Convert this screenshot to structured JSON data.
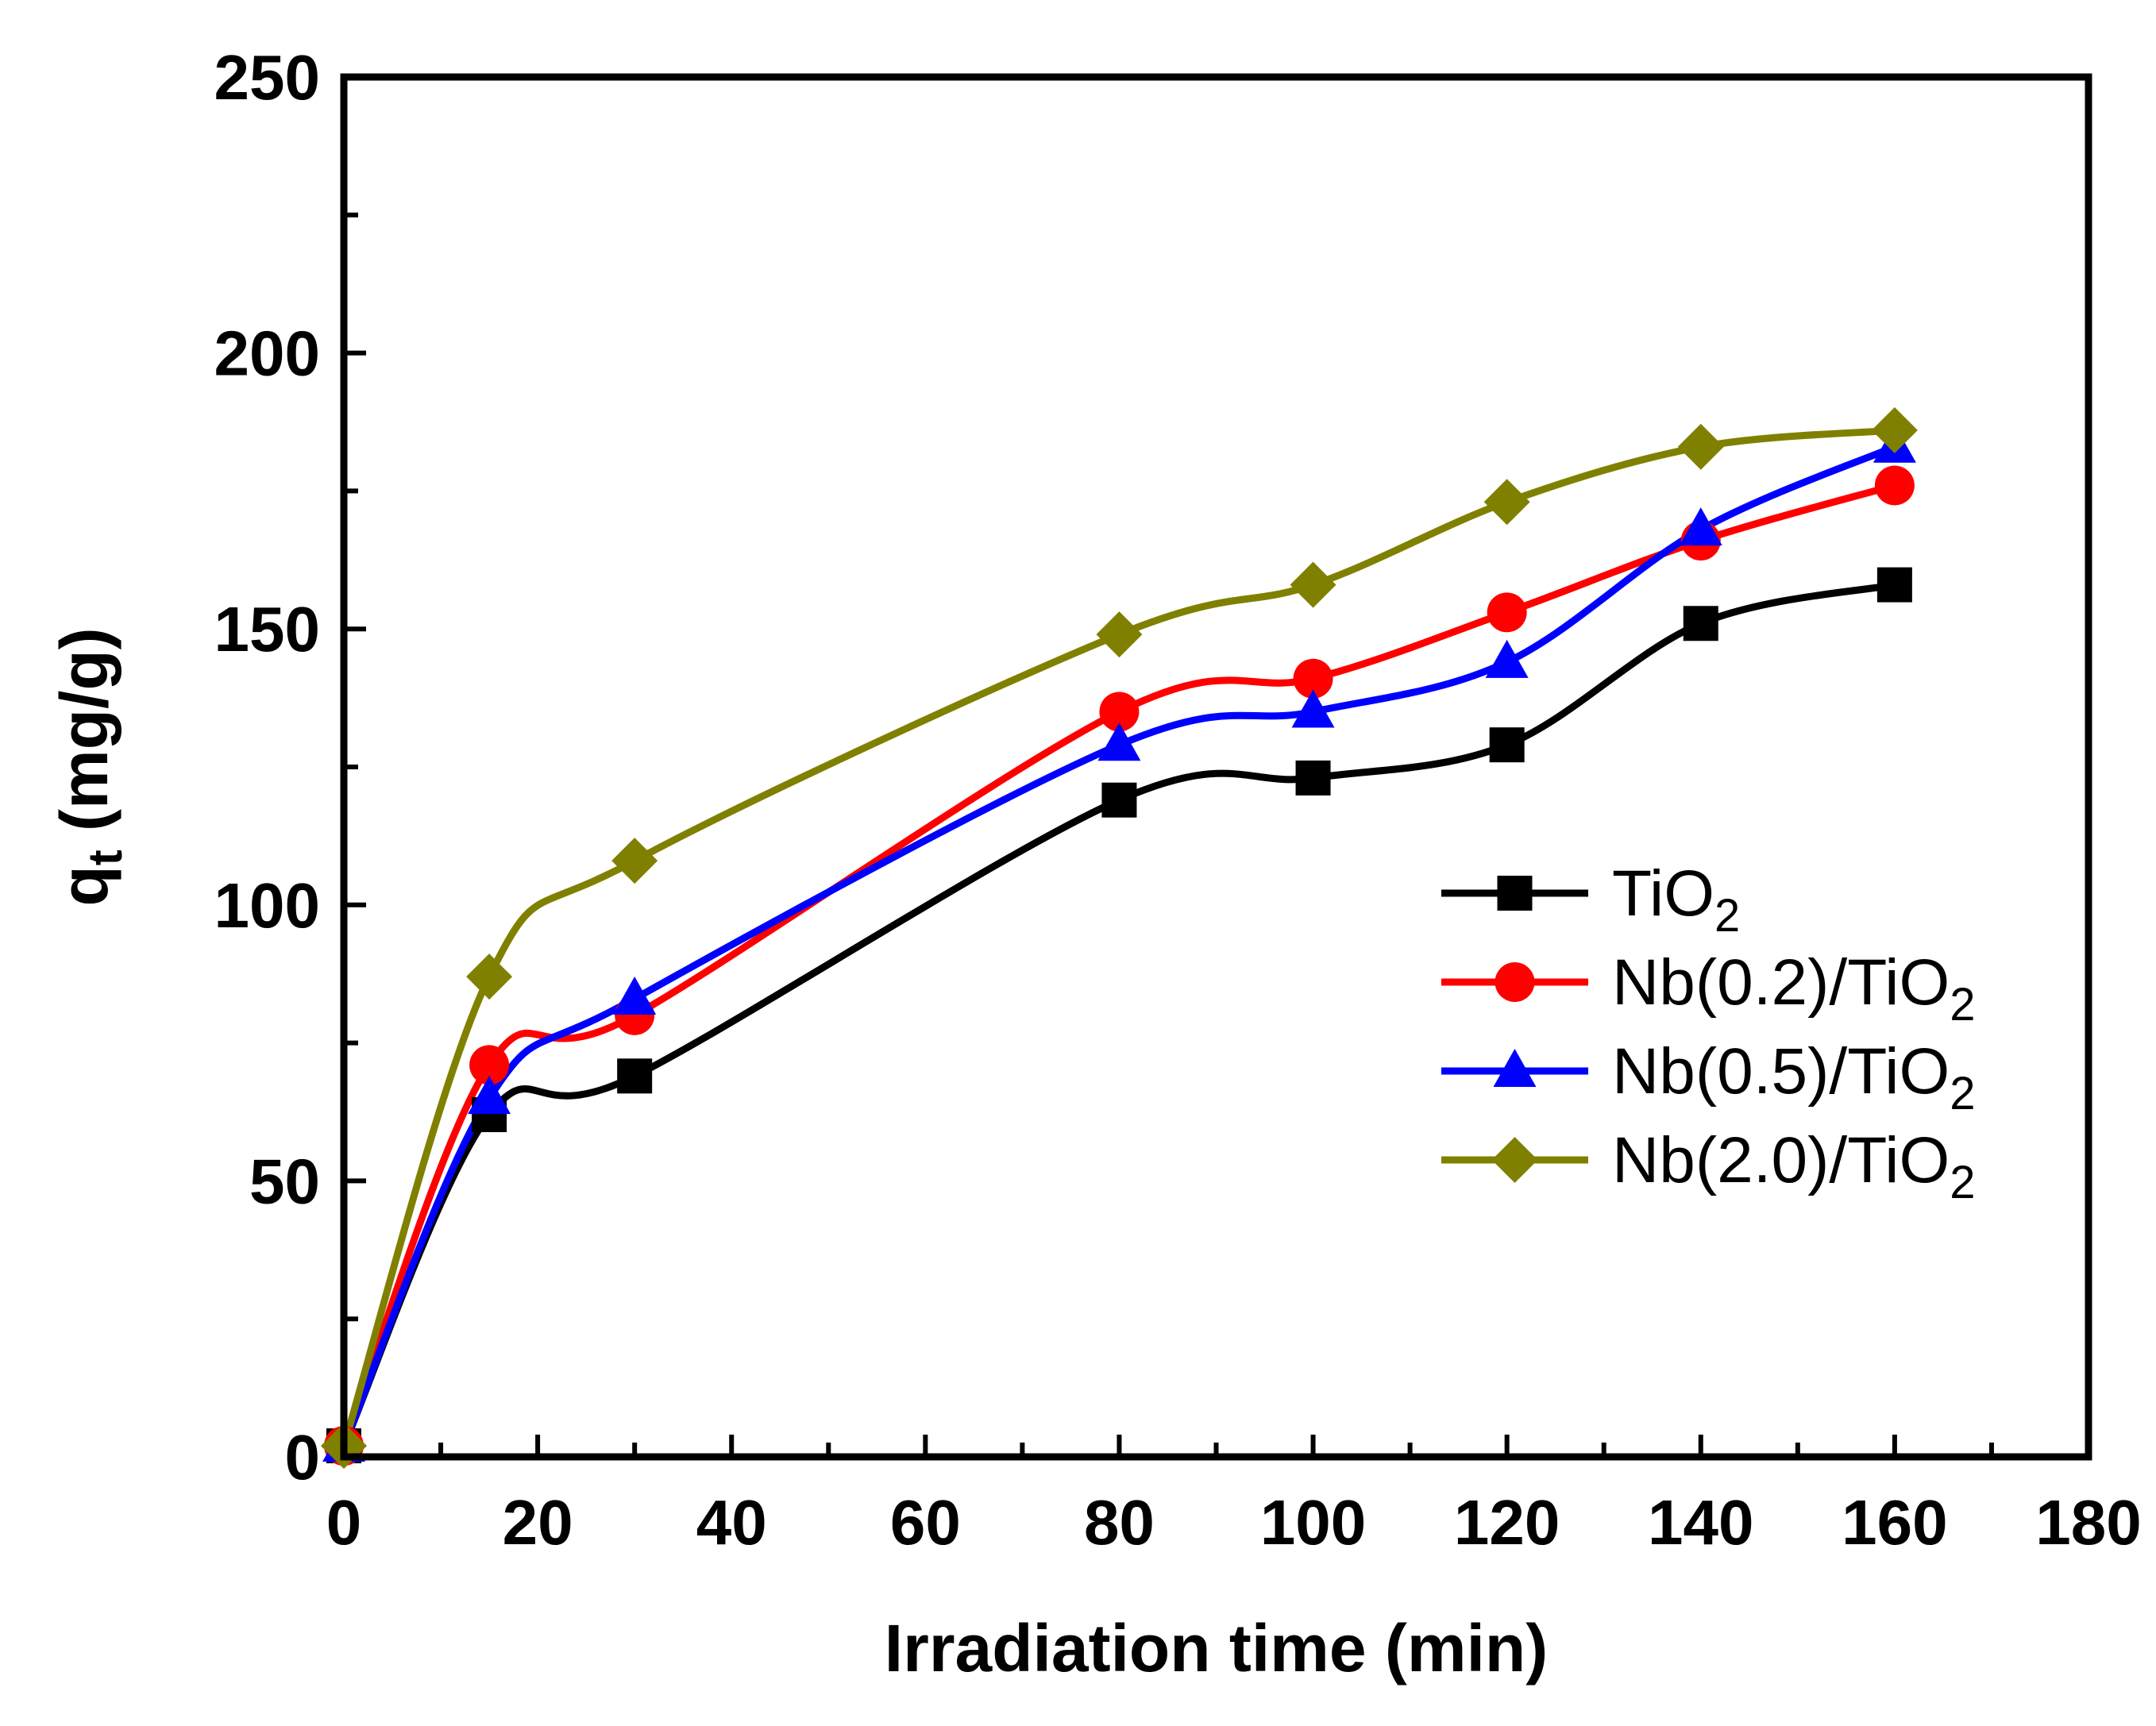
{
  "chart_data": {
    "type": "line",
    "xlabel": "Irradiation time (min)",
    "ylabel_main": "q",
    "ylabel_sub": "t",
    "ylabel_unit": " (mg/g)",
    "xlim": [
      0,
      180
    ],
    "ylim": [
      0,
      250
    ],
    "xticks": [
      0,
      20,
      40,
      60,
      80,
      100,
      120,
      140,
      160,
      180
    ],
    "yticks": [
      0,
      50,
      100,
      150,
      200,
      250
    ],
    "xminor_step": 10,
    "yminor_step": 25,
    "grid": false,
    "legend_position": "right-middle",
    "series": [
      {
        "key": "tio2",
        "name": "TiO",
        "name_sub": "2",
        "color": "#000000",
        "marker": "square",
        "x": [
          0,
          15,
          30,
          80,
          100,
          120,
          140,
          160
        ],
        "y": [
          2,
          62,
          69,
          119,
          123,
          129,
          151,
          158
        ]
      },
      {
        "key": "nb02",
        "name": "Nb(0.2)/TiO",
        "name_sub": "2",
        "color": "#ff0000",
        "marker": "circle",
        "x": [
          0,
          15,
          30,
          80,
          100,
          120,
          140,
          160
        ],
        "y": [
          2,
          71,
          80,
          135,
          141,
          153,
          166,
          176
        ]
      },
      {
        "key": "nb05",
        "name": "Nb(0.5)/TiO",
        "name_sub": "2",
        "color": "#0000ff",
        "marker": "triangle",
        "x": [
          0,
          15,
          30,
          80,
          100,
          120,
          140,
          160
        ],
        "y": [
          2,
          65,
          83,
          129,
          135,
          144,
          168,
          183
        ]
      },
      {
        "key": "nb20",
        "name": "Nb(2.0)/TiO",
        "name_sub": "2",
        "color": "#808000",
        "marker": "diamond",
        "x": [
          0,
          15,
          30,
          80,
          100,
          120,
          140,
          160
        ],
        "y": [
          2,
          87,
          108,
          149,
          158,
          173,
          183,
          186
        ]
      }
    ]
  }
}
